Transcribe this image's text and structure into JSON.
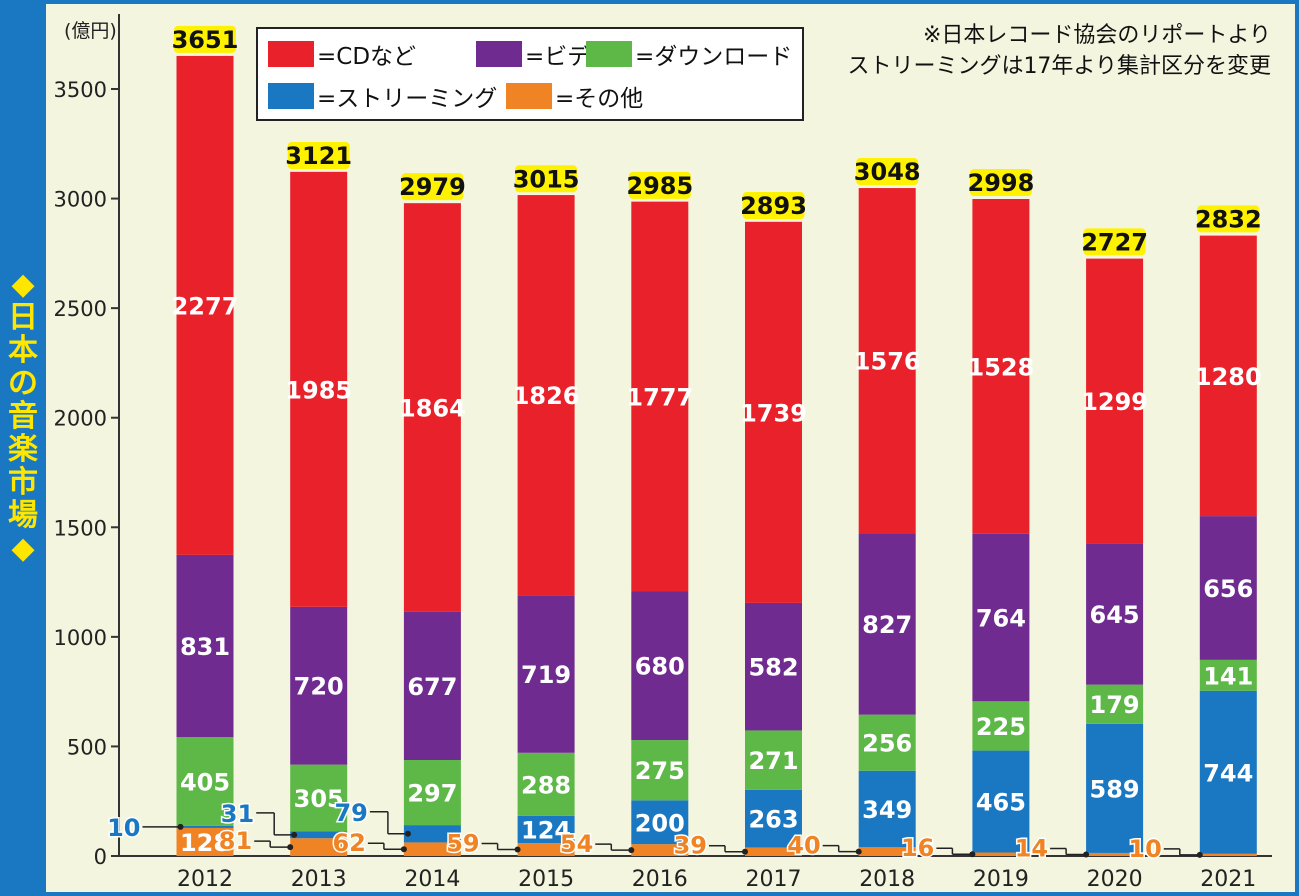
{
  "side_title": "◆日本の音楽市場◆",
  "notes": [
    "※日本レコード協会のリポートより",
    "ストリーミングは17年より集計区分を変更"
  ],
  "colors": {
    "cd": "#e8212b",
    "video": "#6f2b90",
    "download": "#5db848",
    "streaming": "#1a78c2",
    "other": "#f08424",
    "total_label_bg": "#fff200",
    "frame": "#1a78c2"
  },
  "chart_data": {
    "type": "bar",
    "stacked": true,
    "ylabel": "(億円)",
    "ylim": [
      0,
      3500
    ],
    "yticks": [
      0,
      500,
      1000,
      1500,
      2000,
      2500,
      3000,
      3500
    ],
    "ytick_labels": [
      "0",
      "500",
      "1000",
      "1500",
      "2000",
      "2500",
      "3000",
      "3500"
    ],
    "grid": false,
    "legend_position": "top",
    "categories": [
      "2012",
      "2013",
      "2014",
      "2015",
      "2016",
      "2017",
      "2018",
      "2019",
      "2020",
      "2021"
    ],
    "totals": [
      3651,
      3121,
      2979,
      3015,
      2985,
      2893,
      3048,
      2998,
      2727,
      2832
    ],
    "series": [
      {
        "key": "other",
        "name": "=その他",
        "values": [
          128,
          81,
          62,
          59,
          54,
          39,
          40,
          16,
          14,
          10
        ]
      },
      {
        "key": "streaming",
        "name": "=ストリーミング",
        "values": [
          10,
          31,
          79,
          124,
          200,
          263,
          349,
          465,
          589,
          744
        ]
      },
      {
        "key": "download",
        "name": "=ダウンロード",
        "values": [
          405,
          305,
          297,
          288,
          275,
          271,
          256,
          225,
          179,
          141
        ]
      },
      {
        "key": "video",
        "name": "=ビデオ",
        "values": [
          831,
          720,
          677,
          719,
          680,
          582,
          827,
          764,
          645,
          656
        ]
      },
      {
        "key": "cd",
        "name": "=CDなど",
        "values": [
          2277,
          1985,
          1864,
          1826,
          1777,
          1739,
          1576,
          1528,
          1299,
          1280
        ]
      }
    ]
  }
}
